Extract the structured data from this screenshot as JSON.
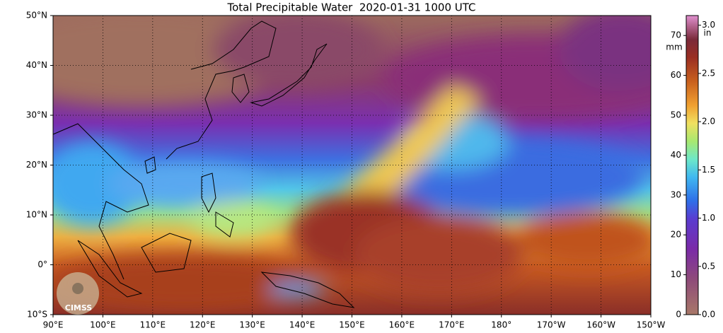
{
  "header": {
    "title": "Total Precipitable Water  2020-01-31 1000 UTC"
  },
  "map": {
    "lat_range": [
      -10,
      50
    ],
    "lon_range": [
      90,
      210
    ],
    "lat_ticks": [
      {
        "value": 50,
        "label": "50°N"
      },
      {
        "value": 40,
        "label": "40°N"
      },
      {
        "value": 30,
        "label": "30°N"
      },
      {
        "value": 20,
        "label": "20°N"
      },
      {
        "value": 10,
        "label": "10°N"
      },
      {
        "value": 0,
        "label": "0°"
      },
      {
        "value": -10,
        "label": "10°S"
      }
    ],
    "lon_ticks": [
      {
        "value": 90,
        "label": "90°E"
      },
      {
        "value": 100,
        "label": "100°E"
      },
      {
        "value": 110,
        "label": "110°E"
      },
      {
        "value": 120,
        "label": "120°E"
      },
      {
        "value": 130,
        "label": "130°E"
      },
      {
        "value": 140,
        "label": "140°E"
      },
      {
        "value": 150,
        "label": "150°E"
      },
      {
        "value": 160,
        "label": "160°E"
      },
      {
        "value": 170,
        "label": "170°E"
      },
      {
        "value": 180,
        "label": "180°"
      },
      {
        "value": 190,
        "label": "170°W"
      },
      {
        "value": 200,
        "label": "160°W"
      },
      {
        "value": 210,
        "label": "150°W"
      }
    ]
  },
  "colorbar": {
    "mm_label": "mm",
    "in_label": "in",
    "mm_lim": [
      0,
      75
    ],
    "mm_ticks": [
      0,
      10,
      20,
      30,
      40,
      50,
      60,
      70
    ],
    "in_lim": [
      0,
      3.1
    ],
    "in_ticks": [
      {
        "value": 0,
        "label": "0.0"
      },
      {
        "value": 0.5,
        "label": "0.5"
      },
      {
        "value": 1,
        "label": "1.0"
      },
      {
        "value": 1.5,
        "label": "1.5"
      },
      {
        "value": 2,
        "label": "2.0"
      },
      {
        "value": 2.5,
        "label": "2.5"
      },
      {
        "value": 3,
        "label": "3.0"
      }
    ]
  },
  "logo": {
    "text": "CIMSS"
  }
}
